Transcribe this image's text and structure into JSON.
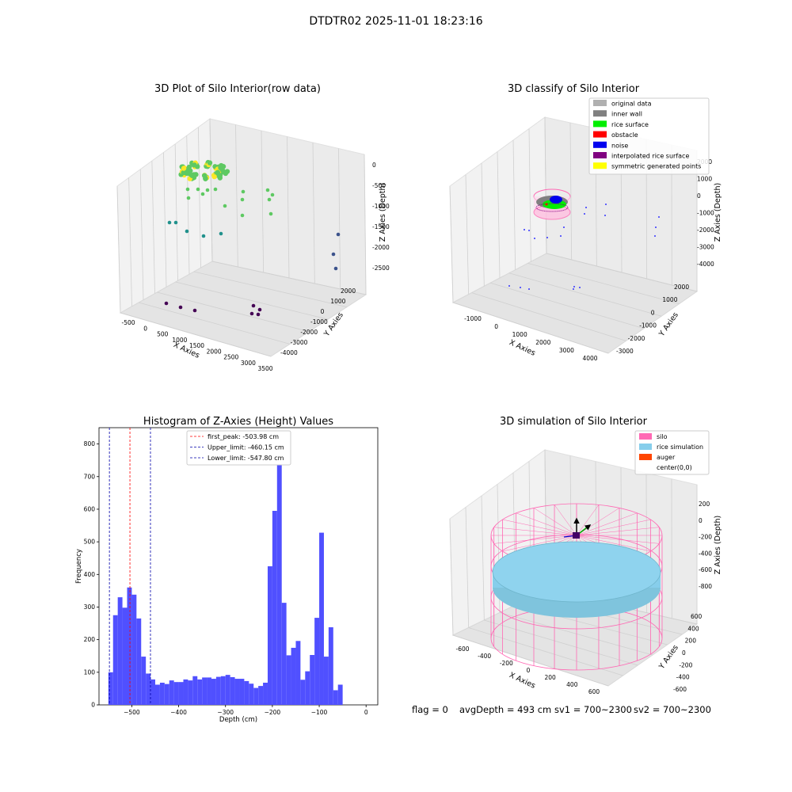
{
  "figure": {
    "suptitle": "DTDTR02 2025-11-01 18:23:16",
    "footer": {
      "flag": "flag = 0",
      "avg": "avgDepth = 493 cm",
      "sv1": "sv1 = 700~2300",
      "sv2": "sv2 = 700~2300"
    }
  },
  "chart_data": [
    {
      "type": "scatter",
      "title": "3D Plot of Silo Interior(row data)",
      "xlabel": "X Axies",
      "ylabel": "Y Axies",
      "zlabel": "Z Axies (Depth)",
      "xticks": [
        "-500",
        "0",
        "500",
        "1000",
        "1500",
        "2000",
        "2500",
        "3000",
        "3500"
      ],
      "yticks": [
        "-4000",
        "-3000",
        "-2000",
        "-1000",
        "0",
        "1000",
        "2000"
      ],
      "zticks": [
        "0",
        "-500",
        "-1000",
        "-1500",
        "-2000",
        "-2500"
      ],
      "colormap": [
        "#440154",
        "#3b528b",
        "#21918c",
        "#5ec962",
        "#fde725"
      ]
    },
    {
      "type": "scatter",
      "title": "3D classify of Silo Interior",
      "xlabel": "X Axies",
      "ylabel": "Y Axies",
      "zlabel": "Z Axies (Depth)",
      "xticks": [
        "-1000",
        "0",
        "1000",
        "2000",
        "3000",
        "4000"
      ],
      "yticks": [
        "-3000",
        "-2000",
        "-1000",
        "0",
        "1000",
        "2000"
      ],
      "zticks": [
        "2000",
        "1000",
        "0",
        "-1000",
        "-2000",
        "-3000",
        "-4000"
      ],
      "legend": [
        {
          "label": "original data",
          "color": "#b0b0b0"
        },
        {
          "label": "inner wall",
          "color": "#808080"
        },
        {
          "label": "rice surface",
          "color": "#00ee00"
        },
        {
          "label": "obstacle",
          "color": "#ff0000"
        },
        {
          "label": "noise",
          "color": "#0000ee"
        },
        {
          "label": "interpolated rice surface",
          "color": "#800080"
        },
        {
          "label": "symmetric generated points",
          "color": "#ffff00"
        }
      ]
    },
    {
      "type": "bar",
      "title": "Histogram of Z-Axies (Height) Values",
      "xlabel": "Depth (cm)",
      "ylabel": "Frequency",
      "xlim": [
        -570,
        25
      ],
      "ylim": [
        0,
        850
      ],
      "bin_start": -550,
      "bin_width": 10,
      "values": [
        100,
        275,
        330,
        298,
        360,
        338,
        265,
        148,
        96,
        78,
        62,
        68,
        64,
        75,
        70,
        70,
        78,
        75,
        88,
        78,
        84,
        84,
        80,
        86,
        88,
        92,
        85,
        80,
        80,
        73,
        65,
        52,
        58,
        68,
        425,
        595,
        810,
        313,
        152,
        175,
        196,
        77,
        103,
        153,
        267,
        528,
        148,
        238,
        45,
        62
      ],
      "xticks": [
        -500,
        -400,
        -300,
        -200,
        -100,
        0
      ],
      "yticks": [
        0,
        100,
        200,
        300,
        400,
        500,
        600,
        700,
        800
      ],
      "bar_color": "#5050ff",
      "lines": [
        {
          "label": "first_peak: -503.98 cm",
          "x": -503.98,
          "color": "#ff0000"
        },
        {
          "label": "Upper_limit: -460.15 cm",
          "x": -460.15,
          "color": "#0000aa"
        },
        {
          "label": "Lower_limit: -547.80 cm",
          "x": -547.8,
          "color": "#0000aa"
        }
      ]
    },
    {
      "type": "area",
      "title": "3D simulation of Silo Interior",
      "xlabel": "X Axies",
      "ylabel": "Y Axies",
      "zlabel": "Z Axies (Depth)",
      "xticks": [
        "-600",
        "-400",
        "-200",
        "0",
        "200",
        "400",
        "600"
      ],
      "yticks": [
        "-600",
        "-400",
        "-200",
        "0",
        "200",
        "400",
        "600"
      ],
      "zticks": [
        "200",
        "0",
        "-200",
        "-400",
        "-600",
        "-800"
      ],
      "legend": [
        {
          "label": "silo",
          "color": "#ff69b4"
        },
        {
          "label": "rice simulation",
          "color": "#87ceeb"
        },
        {
          "label": "auger",
          "color": "#ff4500"
        },
        {
          "label": "center(0,0)",
          "color": "#ffffff"
        }
      ]
    }
  ]
}
